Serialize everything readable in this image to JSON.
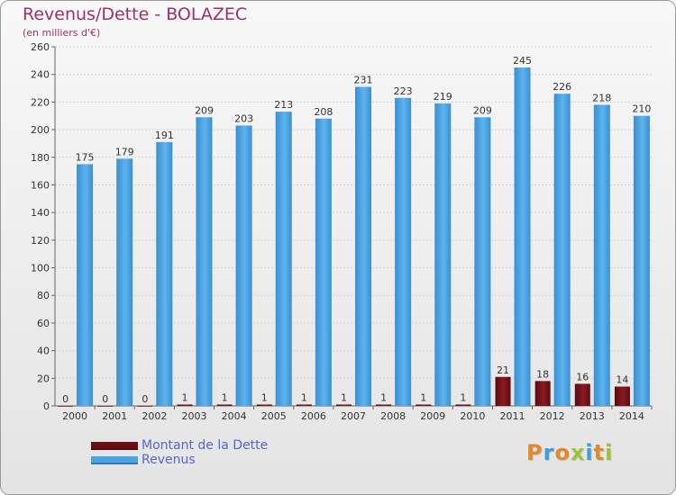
{
  "title": "Revenus/Dette - BOLAZEC",
  "subtitle": "(en milliers d'€)",
  "brand": "Proxiti",
  "colors": {
    "title": "#a0306a",
    "dette": "#6a0f14",
    "revenus": "#4aa3e6",
    "legend_text": "#5566cc"
  },
  "legend": [
    {
      "label": "Montant de la Dette",
      "color": "#6a0f14"
    },
    {
      "label": "Revenus",
      "color": "#4aa3e6"
    }
  ],
  "chart_data": {
    "type": "bar",
    "title": "Revenus/Dette - BOLAZEC",
    "subtitle": "(en milliers d'€)",
    "xlabel": "",
    "ylabel": "",
    "ylim": [
      0,
      260
    ],
    "yticks": [
      0,
      20,
      40,
      60,
      80,
      100,
      120,
      140,
      160,
      180,
      200,
      220,
      240,
      260
    ],
    "grid": true,
    "legend_position": "bottom-left",
    "categories": [
      "2000",
      "2001",
      "2002",
      "2003",
      "2004",
      "2005",
      "2006",
      "2007",
      "2008",
      "2009",
      "2010",
      "2011",
      "2012",
      "2013",
      "2014"
    ],
    "series": [
      {
        "name": "Montant de la Dette",
        "values": [
          0,
          0,
          0,
          1,
          1,
          1,
          1,
          1,
          1,
          1,
          1,
          21,
          18,
          16,
          14
        ]
      },
      {
        "name": "Revenus",
        "values": [
          175,
          179,
          191,
          209,
          203,
          213,
          208,
          231,
          223,
          219,
          209,
          245,
          226,
          218,
          210
        ]
      }
    ]
  }
}
